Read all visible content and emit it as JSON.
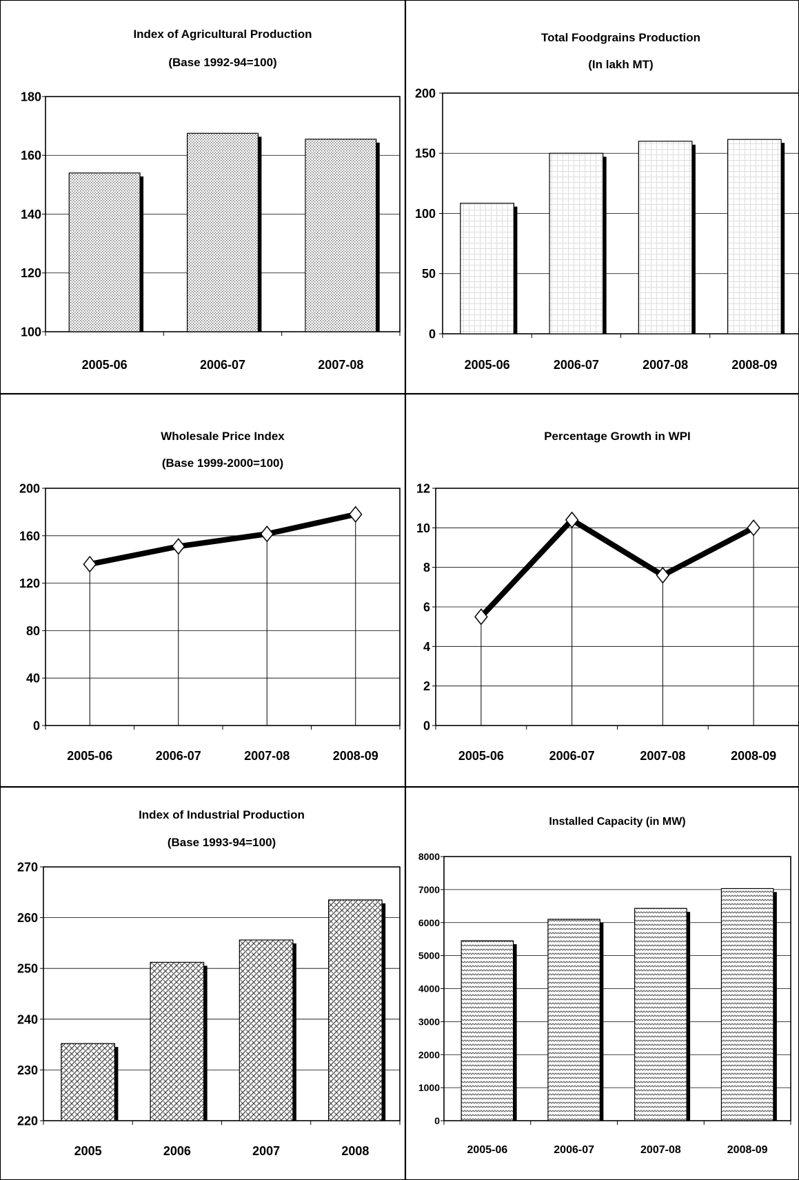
{
  "chart_data": [
    {
      "type": "bar",
      "title": "Index of Agricultural Production",
      "subtitle": "(Base 1992-94=100)",
      "categories": [
        "2005-06",
        "2006-07",
        "2007-08"
      ],
      "values": [
        154,
        167.5,
        165.5
      ],
      "ylim": [
        100,
        180
      ],
      "yticks": [
        100,
        120,
        140,
        160,
        180
      ],
      "grid": true,
      "pattern": "dots"
    },
    {
      "type": "bar",
      "title": "Total Foodgrains Production",
      "subtitle": "(In lakh MT)",
      "categories": [
        "2005-06",
        "2006-07",
        "2007-08",
        "2008-09"
      ],
      "values": [
        108.5,
        150,
        160,
        161.5
      ],
      "ylim": [
        0,
        200
      ],
      "yticks": [
        0,
        50,
        100,
        150,
        200
      ],
      "grid": true,
      "pattern": "squares"
    },
    {
      "type": "line",
      "title": "Wholesale Price Index",
      "subtitle": "(Base 1999-2000=100)",
      "categories": [
        "2005-06",
        "2006-07",
        "2007-08",
        "2008-09"
      ],
      "values": [
        136,
        151,
        161.5,
        178
      ],
      "ylim": [
        0,
        200
      ],
      "yticks": [
        0,
        40,
        80,
        120,
        160,
        200
      ],
      "grid": true,
      "marker": "diamond"
    },
    {
      "type": "line",
      "title": "Percentage Growth in WPI",
      "subtitle": "",
      "categories": [
        "2005-06",
        "2006-07",
        "2007-08",
        "2008-09"
      ],
      "values": [
        5.5,
        10.4,
        7.6,
        10
      ],
      "ylim": [
        0,
        12
      ],
      "yticks": [
        0,
        2,
        4,
        6,
        8,
        10,
        12
      ],
      "grid": true,
      "marker": "diamond"
    },
    {
      "type": "bar",
      "title": "Index of Industrial Production",
      "subtitle": "(Base 1993-94=100)",
      "categories": [
        "2005",
        "2006",
        "2007",
        "2008"
      ],
      "values": [
        235.2,
        251.2,
        255.6,
        263.5
      ],
      "ylim": [
        220,
        270
      ],
      "yticks": [
        220,
        230,
        240,
        250,
        260,
        270
      ],
      "grid": true,
      "pattern": "weave"
    },
    {
      "type": "bar",
      "title": "Installed Capacity (in MW)",
      "subtitle": "",
      "categories": [
        "2005-06",
        "2006-07",
        "2007-08",
        "2008-09"
      ],
      "values": [
        5450,
        6100,
        6430,
        7030
      ],
      "ylim": [
        0,
        8000
      ],
      "yticks": [
        0,
        1000,
        2000,
        3000,
        4000,
        5000,
        6000,
        7000,
        8000
      ],
      "grid": true,
      "pattern": "zigzag"
    }
  ]
}
